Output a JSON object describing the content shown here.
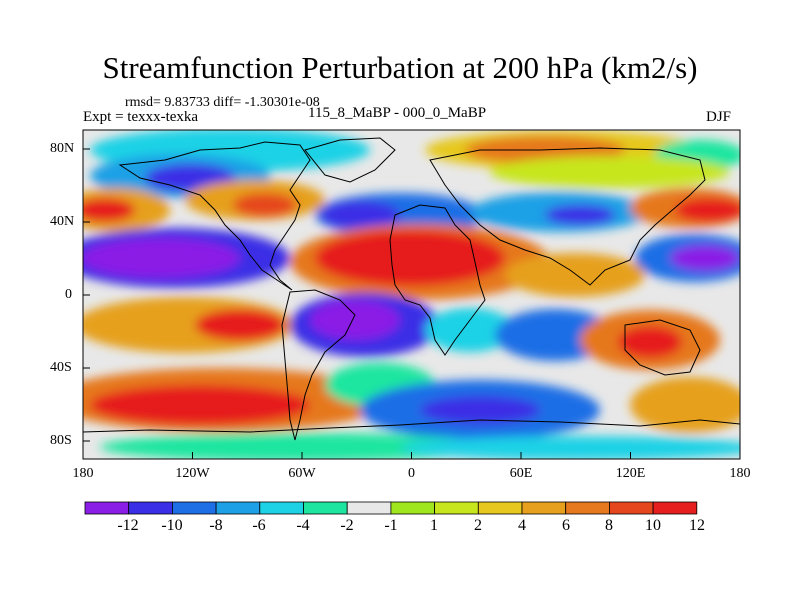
{
  "header": {
    "title": "Streamfunction Perturbation at 200 hPa (km2/s)",
    "stats": "rmsd= 9.83733  diff= -1.30301e-08",
    "expt": "Expt = texxx-texka",
    "runs": "115_8_MaBP - 000_0_MaBP",
    "season": "DJF"
  },
  "axes": {
    "x_ticks": [
      "180",
      "120W",
      "60W",
      "0",
      "60E",
      "120E",
      "180"
    ],
    "y_ticks": [
      "80N",
      "40N",
      "0",
      "40S",
      "80S"
    ]
  },
  "colorbar": {
    "labels": [
      "-12",
      "-10",
      "-8",
      "-6",
      "-4",
      "-2",
      "-1",
      "1",
      "2",
      "4",
      "6",
      "8",
      "10",
      "12"
    ],
    "colors": [
      "#8a1ee6",
      "#3a2ee6",
      "#1e6ee6",
      "#1ea0e6",
      "#1ed2e6",
      "#1ee6a0",
      "#e8e8e8",
      "#a0e61e",
      "#c8e61e",
      "#e6c81e",
      "#e6a01e",
      "#e6781e",
      "#e6461e",
      "#e61e1e"
    ]
  }
}
